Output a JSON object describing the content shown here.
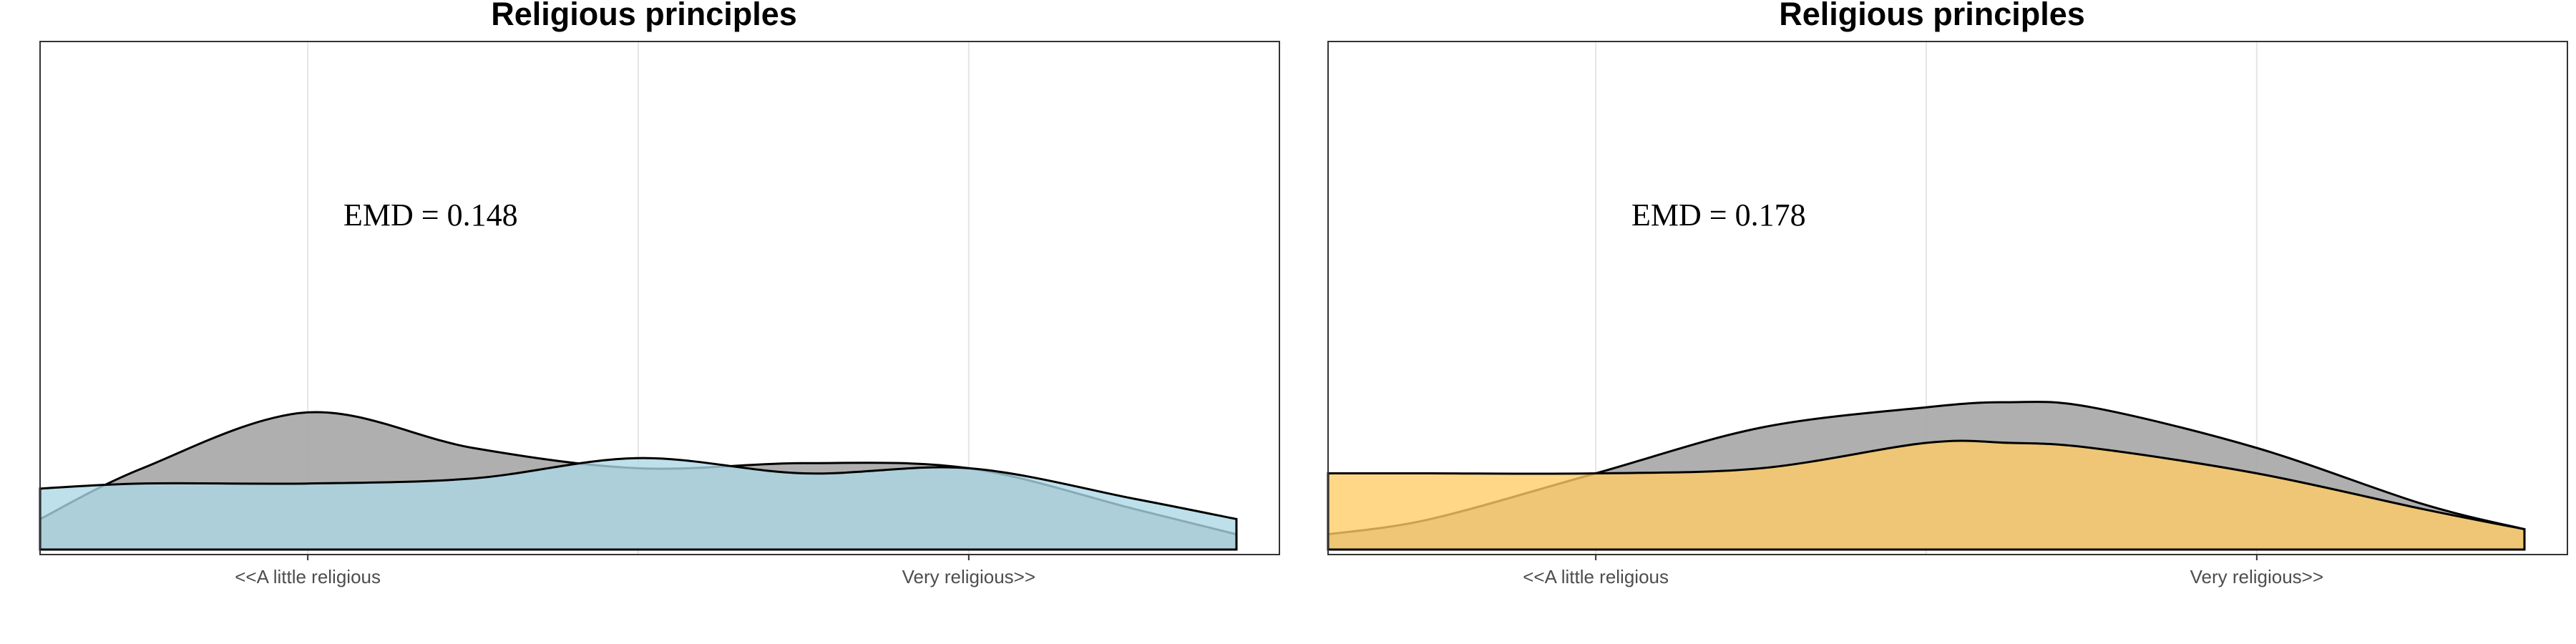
{
  "chart_data": [
    {
      "type": "area",
      "title": "Religious principles",
      "xlabel": "",
      "ylabel": "",
      "x_ticks": [
        "<<A little religious",
        "Very religious>>"
      ],
      "x_tick_values": [
        1,
        3
      ],
      "xlim": [
        0.19,
        3.94
      ],
      "ylim": [
        0,
        1
      ],
      "grid": true,
      "annotation": "EMD = 0.148",
      "x": [
        0.19,
        0.5,
        1.0,
        1.5,
        2.0,
        2.5,
        3.0,
        3.5,
        3.81
      ],
      "series": [
        {
          "color": "#a6a6a6",
          "values": [
            0.06,
            0.16,
            0.27,
            0.2,
            0.16,
            0.17,
            0.16,
            0.08,
            0.03
          ]
        },
        {
          "color": "#add8e6",
          "values": [
            0.12,
            0.13,
            0.13,
            0.14,
            0.18,
            0.15,
            0.16,
            0.1,
            0.06
          ]
        }
      ]
    },
    {
      "type": "area",
      "title": "Religious principles",
      "xlabel": "",
      "ylabel": "",
      "x_ticks": [
        "<<A little religious",
        "Very religious>>"
      ],
      "x_tick_values": [
        1,
        3
      ],
      "xlim": [
        0.19,
        3.94
      ],
      "ylim": [
        0,
        1
      ],
      "grid": true,
      "annotation": "EMD = 0.178",
      "x": [
        0.19,
        0.5,
        1.0,
        1.5,
        2.0,
        2.25,
        2.5,
        3.0,
        3.5,
        3.81
      ],
      "series": [
        {
          "color": "#a6a6a6",
          "values": [
            0.03,
            0.06,
            0.15,
            0.24,
            0.28,
            0.29,
            0.28,
            0.2,
            0.09,
            0.04
          ]
        },
        {
          "color": "#ffcc66",
          "values": [
            0.15,
            0.15,
            0.15,
            0.16,
            0.21,
            0.21,
            0.2,
            0.15,
            0.08,
            0.04
          ]
        }
      ]
    }
  ]
}
